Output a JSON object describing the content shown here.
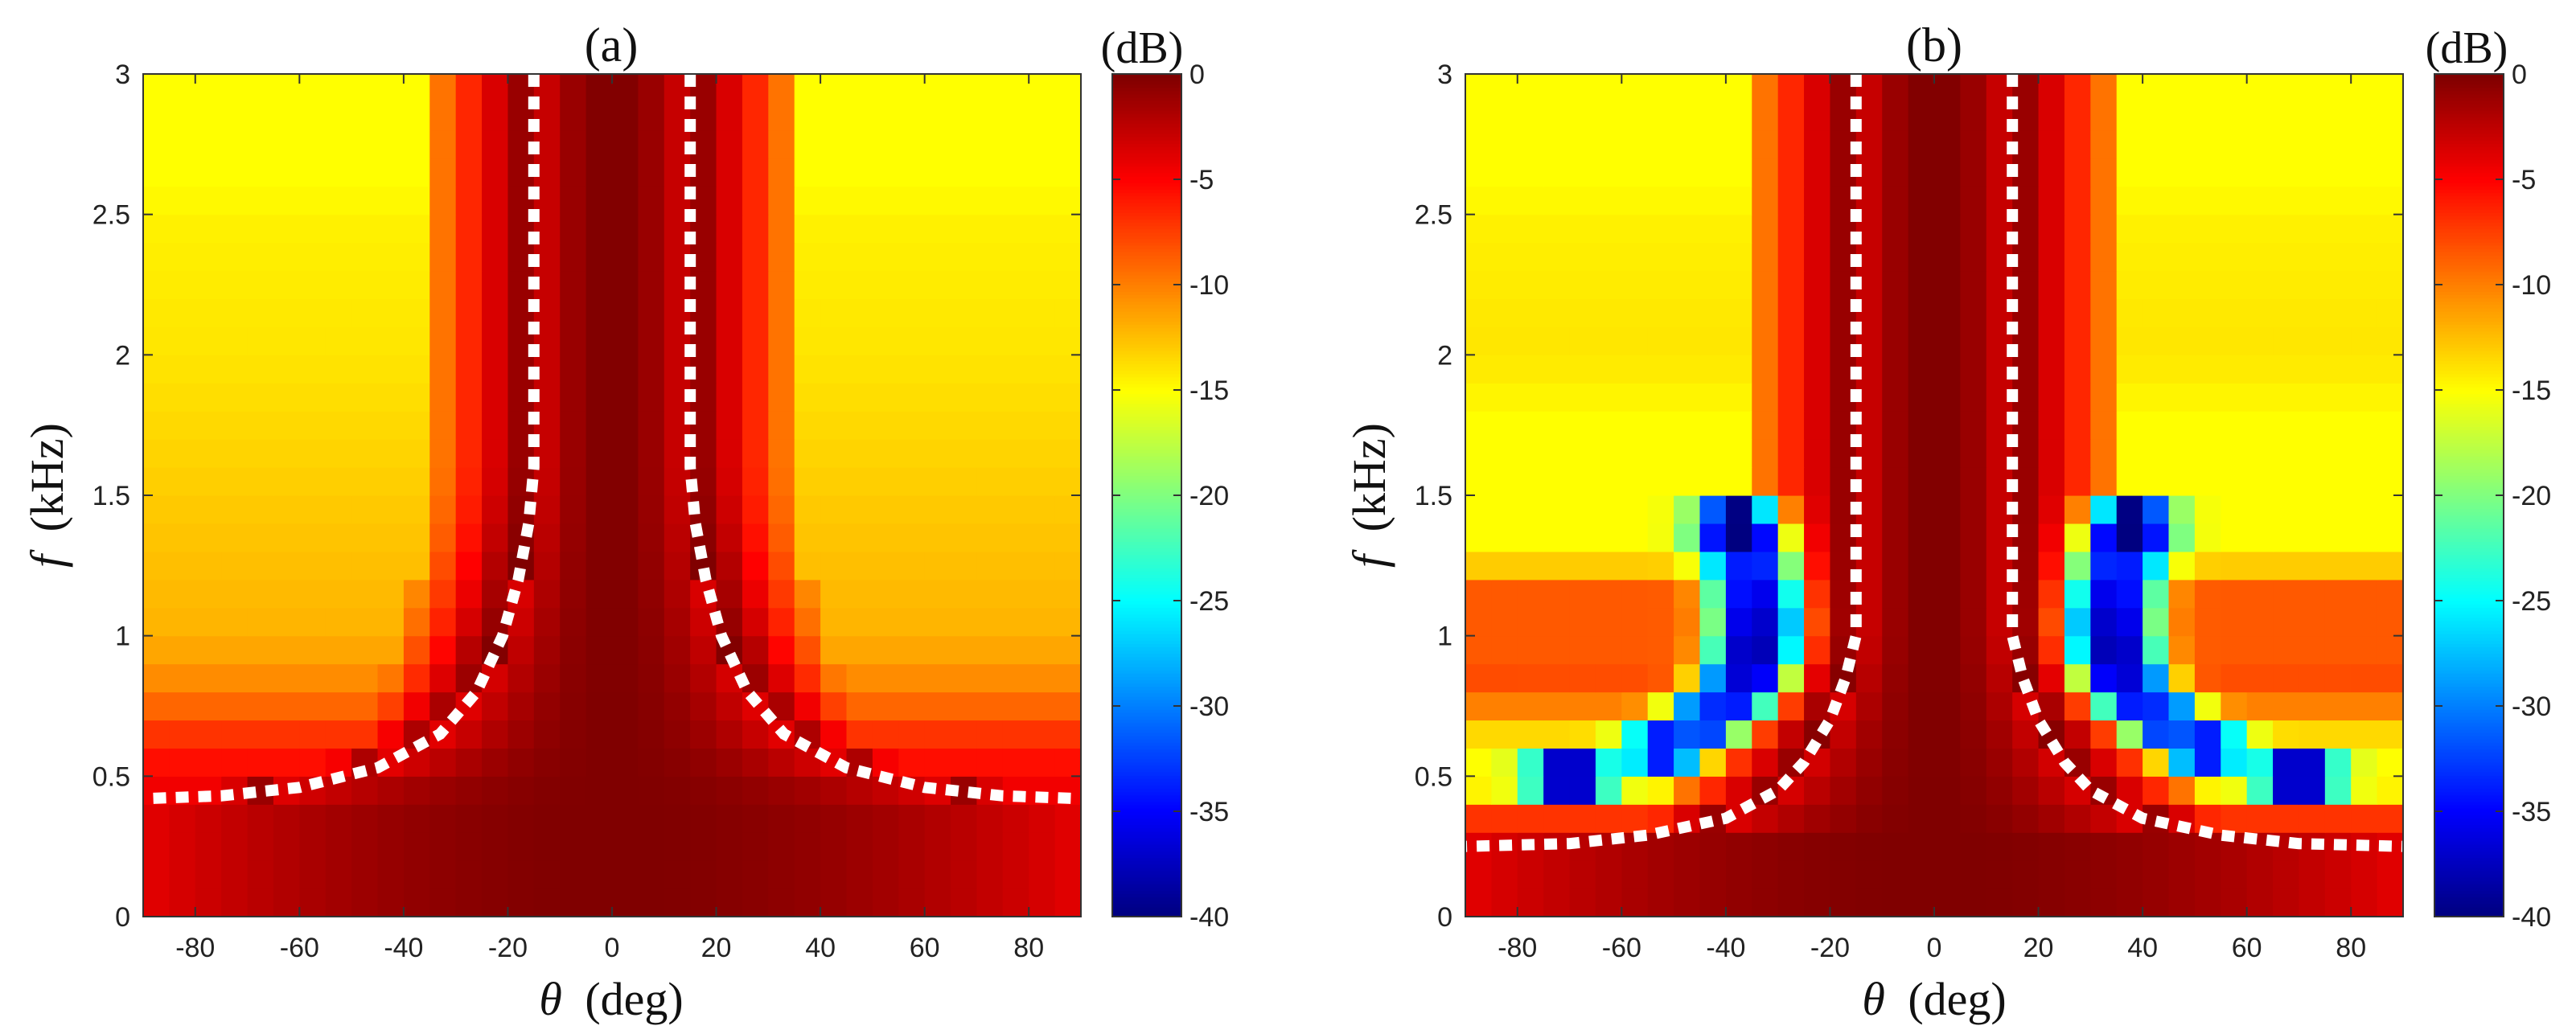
{
  "figure": {
    "panels": [
      "(a)",
      "(b)"
    ]
  },
  "chart_data": [
    {
      "type": "heatmap",
      "title": "(a)",
      "xlabel_symbol": "θ",
      "xlabel_unit": "(deg)",
      "ylabel_symbol": "f",
      "ylabel_unit": "(kHz)",
      "colorbar_label": "(dB)",
      "xlim": [
        -90,
        90
      ],
      "ylim": [
        0,
        3
      ],
      "clim": [
        -40,
        0
      ],
      "x_ticks": [
        -80,
        -60,
        -40,
        -20,
        0,
        20,
        40,
        60,
        80
      ],
      "y_ticks": [
        0,
        0.5,
        1,
        1.5,
        2,
        2.5,
        3
      ],
      "y_tick_labels": [
        "0",
        "0.5",
        "1",
        "1.5",
        "2",
        "2.5",
        "3"
      ],
      "colorbar_ticks": [
        0,
        -5,
        -10,
        -15,
        -20,
        -25,
        -30,
        -35,
        -40
      ],
      "colormap": "jet",
      "grid": {
        "theta_step_deg": 5,
        "freq_step_khz": 0.1
      },
      "mainlobe_edge_levels_db": [
        0,
        -2,
        -5,
        -8,
        -11
      ],
      "sidelobe_floor_db": {
        "0.1": -1,
        "0.2": -2,
        "0.3": -3,
        "0.4": -4,
        "0.5": -5,
        "0.6": -6,
        "0.7": -8,
        "0.8": -10,
        "0.9": -11,
        "1.0": -12,
        "1.5": -13,
        "2.0": -14,
        "2.5": -14.5,
        "3.0": -17
      },
      "notches": [],
      "dashed_curve": {
        "color": "#ffffff",
        "description": "mainlobe boundary",
        "points_deg_khz": [
          [
            15,
            3.0
          ],
          [
            15,
            1.6
          ],
          [
            16,
            1.4
          ],
          [
            18,
            1.2
          ],
          [
            21,
            1.0
          ],
          [
            26,
            0.8
          ],
          [
            33,
            0.65
          ],
          [
            45,
            0.53
          ],
          [
            60,
            0.46
          ],
          [
            75,
            0.43
          ],
          [
            90,
            0.42
          ]
        ]
      }
    },
    {
      "type": "heatmap",
      "title": "(b)",
      "xlabel_symbol": "θ",
      "xlabel_unit": "(deg)",
      "ylabel_symbol": "f",
      "ylabel_unit": "(kHz)",
      "colorbar_label": "(dB)",
      "xlim": [
        -90,
        90
      ],
      "ylim": [
        0,
        3
      ],
      "clim": [
        -40,
        0
      ],
      "x_ticks": [
        -80,
        -60,
        -40,
        -20,
        0,
        20,
        40,
        60,
        80
      ],
      "y_ticks": [
        0,
        0.5,
        1,
        1.5,
        2,
        2.5,
        3
      ],
      "y_tick_labels": [
        "0",
        "0.5",
        "1",
        "1.5",
        "2",
        "2.5",
        "3"
      ],
      "colorbar_ticks": [
        0,
        -5,
        -10,
        -15,
        -20,
        -25,
        -30,
        -35,
        -40
      ],
      "colormap": "jet",
      "grid": {
        "theta_step_deg": 5,
        "freq_step_khz": 0.1
      },
      "mainlobe_edge_levels_db": [
        0,
        -2,
        -5,
        -8,
        -11
      ],
      "sidelobe_floor_db": {
        "0.1": -1,
        "0.2": -3,
        "0.3": -5,
        "0.4": -9,
        "0.5": -20,
        "0.6": -14,
        "0.7": -13,
        "0.8": -7,
        "0.9": -9,
        "1.0": -8,
        "1.1": -9,
        "1.2": -8,
        "1.3": -18,
        "1.4": -38,
        "1.5": -16,
        "2.0": -14,
        "2.5": -14.5,
        "3.0": -17
      },
      "notches": [
        {
          "freq_khz": 0.5,
          "theta_deg": 70,
          "depth_db": -40
        },
        {
          "freq_khz": 0.6,
          "theta_deg": 52,
          "depth_db": -34
        },
        {
          "freq_khz": 0.7,
          "theta_deg": 44,
          "depth_db": -33
        },
        {
          "freq_khz": 0.8,
          "theta_deg": 38,
          "depth_db": -34
        },
        {
          "freq_khz": 0.9,
          "theta_deg": 35,
          "depth_db": -37
        },
        {
          "freq_khz": 1.0,
          "theta_deg": 34,
          "depth_db": -38
        },
        {
          "freq_khz": 1.1,
          "theta_deg": 34,
          "depth_db": -37
        },
        {
          "freq_khz": 1.2,
          "theta_deg": 35,
          "depth_db": -35
        },
        {
          "freq_khz": 1.3,
          "theta_deg": 36,
          "depth_db": -34
        },
        {
          "freq_khz": 1.4,
          "theta_deg": 38,
          "depth_db": -40
        }
      ],
      "dashed_curve": {
        "color": "#ffffff",
        "description": "mainlobe boundary",
        "points_deg_khz": [
          [
            15,
            3.0
          ],
          [
            15,
            1.0
          ],
          [
            17,
            0.85
          ],
          [
            20,
            0.7
          ],
          [
            25,
            0.55
          ],
          [
            30,
            0.45
          ],
          [
            40,
            0.35
          ],
          [
            55,
            0.29
          ],
          [
            70,
            0.26
          ],
          [
            90,
            0.25
          ]
        ]
      }
    }
  ]
}
